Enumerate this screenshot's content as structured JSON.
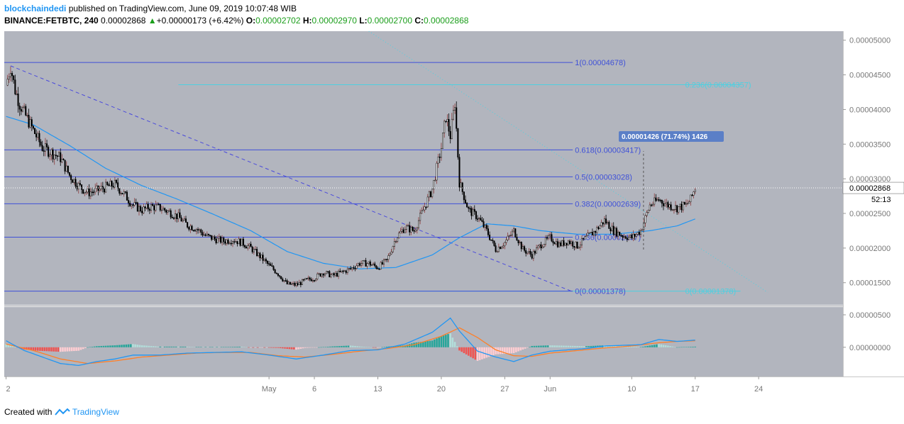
{
  "header": {
    "author": "blockchaindedi",
    "published": "published on TradingView.com, June 09, 2019 10:07:48 WIB",
    "symbol": "BINANCE:FETBTC, 240",
    "last": "0.00002868",
    "arrow": "▲",
    "change": "+0.00000173 (+6.42%)",
    "o_label": "O:",
    "o_value": "0.00002702",
    "h_label": "H:",
    "h_value": "0.00002970",
    "l_label": "L:",
    "l_value": "0.00002700",
    "c_label": "C:",
    "c_value": "0.00002868"
  },
  "footer": {
    "created": "Created with",
    "brand": "TradingView"
  },
  "colors": {
    "chart_bg": "#b2b5be",
    "fib_line": "#3f51d8",
    "fib_ext": "#4dd0e1",
    "ma": "#2196f3",
    "macd": "#2196f3",
    "signal": "#ff7f27",
    "hist_pos": "#26a69a",
    "hist_pos_light": "#b2dfdb",
    "hist_neg": "#ef5350",
    "hist_neg_light": "#ffcdd2"
  },
  "chart_data": {
    "type": "candlestick",
    "y_axis": {
      "ylim": [
        1.18e-05,
        5.13e-05
      ],
      "ticks": [
        "0.00005000",
        "0.00004500",
        "0.00004000",
        "0.00003500",
        "0.00003000",
        "0.00002500",
        "0.00002000",
        "0.00001500"
      ],
      "tick_values": [
        5e-05,
        4.5e-05,
        4e-05,
        3.5e-05,
        3e-05,
        2.5e-05,
        2e-05,
        1.5e-05
      ]
    },
    "x_axis": {
      "ticks": [
        "2",
        "May",
        "6",
        "13",
        "20",
        "27",
        "Jun",
        "10",
        "17",
        "24"
      ],
      "tick_days": [
        -29,
        0,
        5,
        12,
        19,
        26,
        31,
        40,
        47,
        54
      ]
    },
    "last_price_label": "0.00002868",
    "countdown": "52:13",
    "fib_levels": [
      {
        "label": "1(0.00004678)",
        "value": 4.678e-05
      },
      {
        "label": "0.618(0.00003417)",
        "value": 3.417e-05
      },
      {
        "label": "0.5(0.00003028)",
        "value": 3.028e-05
      },
      {
        "label": "0.382(0.00002639)",
        "value": 2.639e-05
      },
      {
        "label": "0.236(0.00002157)",
        "value": 2.157e-05
      },
      {
        "label": "0(0.00001378)",
        "value": 1.378e-05
      }
    ],
    "fib_extensions": [
      {
        "label": "0.236(0.00004357)",
        "value": 4.357e-05
      },
      {
        "label": "0(0.00001378)",
        "value": 1.378e-05
      }
    ],
    "measure_label": "0.00001426 (71.74%) 1426",
    "price_path": [
      [
        -29,
        4.35e-05
      ],
      [
        -28.5,
        4.62e-05
      ],
      [
        -28,
        4.28e-05
      ],
      [
        -27.5,
        4.08e-05
      ],
      [
        -27,
        3.95e-05
      ],
      [
        -26,
        3.7e-05
      ],
      [
        -25,
        3.45e-05
      ],
      [
        -24,
        3.38e-05
      ],
      [
        -23,
        3.3e-05
      ],
      [
        -22,
        3.05e-05
      ],
      [
        -21,
        2.9e-05
      ],
      [
        -20,
        2.8e-05
      ],
      [
        -19,
        2.83e-05
      ],
      [
        -18,
        2.88e-05
      ],
      [
        -17,
        2.92e-05
      ],
      [
        -16,
        2.78e-05
      ],
      [
        -15,
        2.62e-05
      ],
      [
        -14,
        2.55e-05
      ],
      [
        -13,
        2.6e-05
      ],
      [
        -12,
        2.58e-05
      ],
      [
        -11,
        2.52e-05
      ],
      [
        -10,
        2.45e-05
      ],
      [
        -9,
        2.33e-05
      ],
      [
        -8,
        2.28e-05
      ],
      [
        -7,
        2.18e-05
      ],
      [
        -6,
        2.13e-05
      ],
      [
        -5,
        2.1e-05
      ],
      [
        -4,
        2.12e-05
      ],
      [
        -3,
        2.08e-05
      ],
      [
        -2,
        2e-05
      ],
      [
        -1,
        1.88e-05
      ],
      [
        0,
        1.75e-05
      ],
      [
        1,
        1.63e-05
      ],
      [
        2,
        1.48e-05
      ],
      [
        3,
        1.47e-05
      ],
      [
        4,
        1.53e-05
      ],
      [
        5,
        1.57e-05
      ],
      [
        6,
        1.65e-05
      ],
      [
        7,
        1.6e-05
      ],
      [
        8,
        1.65e-05
      ],
      [
        9,
        1.7e-05
      ],
      [
        10,
        1.78e-05
      ],
      [
        11,
        1.78e-05
      ],
      [
        12,
        1.72e-05
      ],
      [
        13,
        1.82e-05
      ],
      [
        14,
        2.15e-05
      ],
      [
        15,
        2.3e-05
      ],
      [
        16,
        2.25e-05
      ],
      [
        17,
        2.55e-05
      ],
      [
        18,
        2.85e-05
      ],
      [
        19,
        3.45e-05
      ],
      [
        19.5,
        3.9e-05
      ],
      [
        20,
        3.62e-05
      ],
      [
        20.5,
        4.1e-05
      ],
      [
        21,
        2.95e-05
      ],
      [
        22,
        2.55e-05
      ],
      [
        23,
        2.45e-05
      ],
      [
        24,
        2.25e-05
      ],
      [
        25,
        1.98e-05
      ],
      [
        26,
        2.08e-05
      ],
      [
        27,
        2.25e-05
      ],
      [
        28,
        1.98e-05
      ],
      [
        29,
        1.9e-05
      ],
      [
        30,
        2.05e-05
      ],
      [
        31,
        2.15e-05
      ],
      [
        32,
        2.05e-05
      ],
      [
        33,
        2.1e-05
      ],
      [
        34,
        2.03e-05
      ],
      [
        35,
        2.15e-05
      ],
      [
        36,
        2.25e-05
      ],
      [
        37,
        2.4e-05
      ],
      [
        38,
        2.25e-05
      ],
      [
        39,
        2.18e-05
      ],
      [
        40,
        2.15e-05
      ],
      [
        41,
        2.25e-05
      ],
      [
        42,
        2.62e-05
      ],
      [
        43,
        2.7e-05
      ],
      [
        44,
        2.62e-05
      ],
      [
        45,
        2.58e-05
      ],
      [
        46,
        2.62e-05
      ],
      [
        46.5,
        2.7e-05
      ],
      [
        47,
        2.87e-05
      ]
    ],
    "ma_path": [
      [
        -29,
        3.9e-05
      ],
      [
        -26,
        3.78e-05
      ],
      [
        -22,
        3.48e-05
      ],
      [
        -18,
        3.15e-05
      ],
      [
        -14,
        2.9e-05
      ],
      [
        -10,
        2.7e-05
      ],
      [
        -6,
        2.48e-05
      ],
      [
        -2,
        2.25e-05
      ],
      [
        2,
        1.95e-05
      ],
      [
        6,
        1.78e-05
      ],
      [
        10,
        1.7e-05
      ],
      [
        14,
        1.72e-05
      ],
      [
        18,
        1.9e-05
      ],
      [
        21,
        2.15e-05
      ],
      [
        24,
        2.35e-05
      ],
      [
        27,
        2.32e-05
      ],
      [
        30,
        2.25e-05
      ],
      [
        34,
        2.2e-05
      ],
      [
        38,
        2.2e-05
      ],
      [
        42,
        2.25e-05
      ],
      [
        45,
        2.32e-05
      ],
      [
        47,
        2.42e-05
      ]
    ],
    "macd_path": [
      [
        -29,
        1e-06
      ],
      [
        -27,
        -5e-07
      ],
      [
        -25,
        -1.5e-06
      ],
      [
        -23,
        -2.5e-06
      ],
      [
        -21,
        -2.8e-06
      ],
      [
        -19,
        -2.2e-06
      ],
      [
        -17,
        -1.8e-06
      ],
      [
        -15,
        -1.2e-06
      ],
      [
        -12,
        -1.2e-06
      ],
      [
        -9,
        -9e-07
      ],
      [
        -6,
        -8e-07
      ],
      [
        -3,
        -7e-07
      ],
      [
        0,
        -1.2e-06
      ],
      [
        3,
        -1.8e-06
      ],
      [
        6,
        -1.2e-06
      ],
      [
        9,
        -5e-07
      ],
      [
        12,
        -4e-07
      ],
      [
        15,
        5e-07
      ],
      [
        18,
        2.3e-06
      ],
      [
        20,
        4.5e-06
      ],
      [
        21,
        2.5e-06
      ],
      [
        23,
        -6e-07
      ],
      [
        25,
        -1.5e-06
      ],
      [
        27,
        -2.2e-06
      ],
      [
        29,
        -1.2e-06
      ],
      [
        31,
        -6e-07
      ],
      [
        33,
        -4e-07
      ],
      [
        35,
        -2e-07
      ],
      [
        37,
        2e-07
      ],
      [
        39,
        3e-07
      ],
      [
        41,
        4e-07
      ],
      [
        43,
        1.2e-06
      ],
      [
        45,
        9e-07
      ],
      [
        47,
        1.1e-06
      ]
    ],
    "signal_path": [
      [
        -29,
        5e-07
      ],
      [
        -26,
        -5e-07
      ],
      [
        -23,
        -1.8e-06
      ],
      [
        -20,
        -2.5e-06
      ],
      [
        -17,
        -2.1e-06
      ],
      [
        -14,
        -1.5e-06
      ],
      [
        -11,
        -1.2e-06
      ],
      [
        -8,
        -9e-07
      ],
      [
        -5,
        -8e-07
      ],
      [
        -2,
        -8e-07
      ],
      [
        1,
        -1.3e-06
      ],
      [
        4,
        -1.5e-06
      ],
      [
        7,
        -1.1e-06
      ],
      [
        10,
        -6e-07
      ],
      [
        13,
        -2e-07
      ],
      [
        16,
        4e-07
      ],
      [
        19,
        1.7e-06
      ],
      [
        21,
        3e-06
      ],
      [
        23,
        1.5e-06
      ],
      [
        25,
        -4e-07
      ],
      [
        27,
        -1.3e-06
      ],
      [
        29,
        -1.4e-06
      ],
      [
        31,
        -9e-07
      ],
      [
        34,
        -5e-07
      ],
      [
        37,
        -1e-07
      ],
      [
        40,
        2e-07
      ],
      [
        43,
        7e-07
      ],
      [
        45,
        9e-07
      ],
      [
        47,
        1e-06
      ]
    ],
    "macd_axis": {
      "ylim": [
        -4.5e-06,
        6.2e-06
      ],
      "ticks": [
        "0.00000500",
        "0.00000000"
      ],
      "tick_values": [
        5e-06,
        0
      ]
    }
  }
}
